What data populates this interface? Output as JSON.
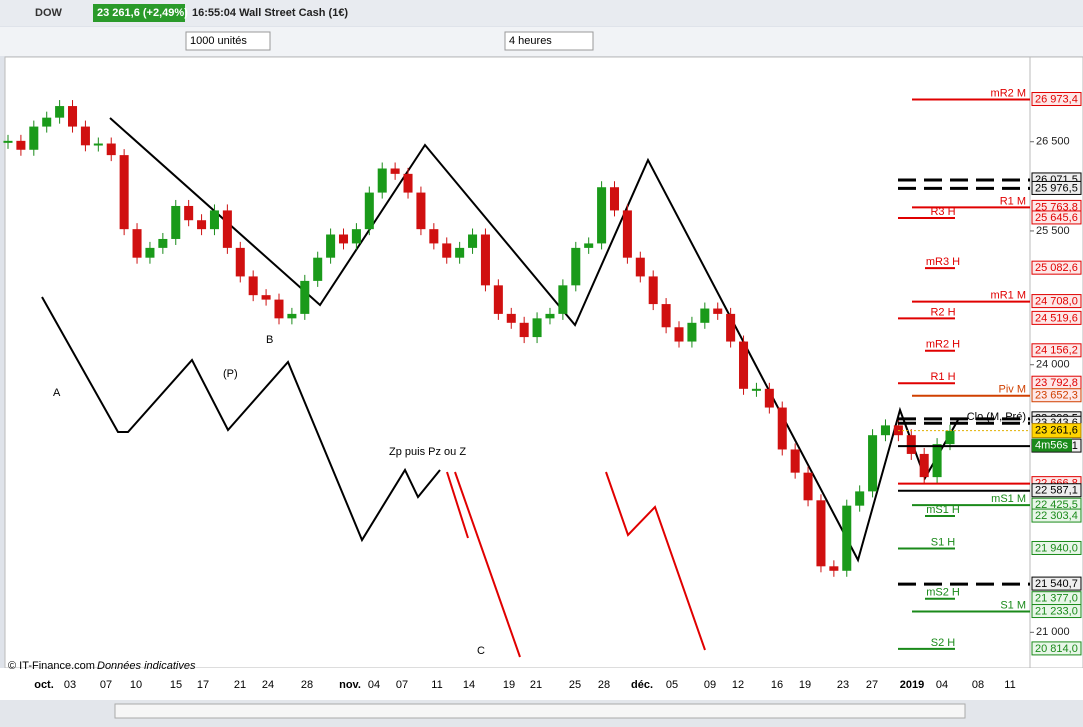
{
  "header": {
    "symbol": "DOW",
    "price": "23 261,6 (+2,49%)",
    "title": "16:55:04 Wall Street Cash (1€)"
  },
  "toolbar": {
    "quantity": "1000 unités",
    "period": "4 heures"
  },
  "chart_data": {
    "type": "candlestick",
    "ylim": [
      20600,
      27450
    ],
    "yticks": [
      {
        "value": 26500,
        "label": "26 500"
      },
      {
        "value": 25500,
        "label": "25 500"
      },
      {
        "value": 24000,
        "label": "24 000"
      },
      {
        "value": 21000,
        "label": "21 000"
      }
    ],
    "x_labels": [
      "oct.",
      "03",
      "07",
      "10",
      "15",
      "17",
      "21",
      "24",
      "28",
      "nov.",
      "04",
      "07",
      "11",
      "14",
      "19",
      "21",
      "25",
      "28",
      "déc.",
      "05",
      "09",
      "12",
      "16",
      "19",
      "23",
      "27",
      "2019",
      "04",
      "08",
      "11"
    ],
    "closes": [
      26510,
      26410,
      26670,
      26770,
      26900,
      26670,
      26460,
      26480,
      26350,
      25520,
      25200,
      25310,
      25410,
      25780,
      25620,
      25520,
      25730,
      25310,
      24990,
      24780,
      24730,
      24520,
      24570,
      24940,
      25200,
      25460,
      25360,
      25520,
      25930,
      26200,
      26140,
      25930,
      25520,
      25360,
      25200,
      25310,
      25460,
      24890,
      24570,
      24470,
      24310,
      24520,
      24570,
      24890,
      25310,
      25360,
      25990,
      25730,
      25200,
      24990,
      24680,
      24420,
      24260,
      24470,
      24630,
      24570,
      24260,
      23730,
      23730,
      23520,
      23050,
      22790,
      22480,
      21740,
      21690,
      22420,
      22580,
      23210,
      23320,
      23210,
      23000,
      22740,
      23110,
      23260
    ],
    "current": {
      "value": 23261.6,
      "value_label": "23 261,6"
    },
    "timer": "4m56s",
    "levels": [
      {
        "name": "mR2 M",
        "value": 26973.4,
        "value_label": "26 973,4",
        "color": "#e00000"
      },
      {
        "value": 26071.5,
        "value_label": "26 071,5",
        "color": "#000000",
        "dash": true
      },
      {
        "value": 25976.5,
        "value_label": "25 976,5",
        "color": "#000000",
        "dash": true
      },
      {
        "name": "R1 M",
        "value": 25763.8,
        "value_label": "25 763,8",
        "color": "#e00000"
      },
      {
        "name": "R3 H",
        "value": 25645.6,
        "value_label": "25 645,6",
        "color": "#e00000"
      },
      {
        "name": "mR3 H",
        "value": 25082.6,
        "value_label": "25 082,6",
        "color": "#e00000"
      },
      {
        "name": "mR1 M",
        "value": 24708.0,
        "value_label": "24 708,0",
        "color": "#e00000"
      },
      {
        "name": "R2 H",
        "value": 24519.6,
        "value_label": "24 519,6",
        "color": "#e00000"
      },
      {
        "name": "mR2 H",
        "value": 24156.2,
        "value_label": "24 156,2",
        "color": "#e00000"
      },
      {
        "name": "R1 H",
        "value": 23792.8,
        "value_label": "23 792,8",
        "color": "#e00000"
      },
      {
        "name": "Piv M",
        "value": 23652.3,
        "value_label": "23 652,3",
        "color": "#d04000"
      },
      {
        "value": 23393.5,
        "value_label": "23 393,5",
        "color": "#000000",
        "dash": true
      },
      {
        "name": "Clo (M, Pré)",
        "value": 23343.6,
        "value_label": "23 343,6",
        "color": "#000000",
        "dash": true
      },
      {
        "value": 23088.1,
        "value_label": "23 088,1",
        "color": "#000000"
      },
      {
        "value": 22666.8,
        "value_label": "22 666,8",
        "color": "#e00000"
      },
      {
        "value": 22587.1,
        "value_label": "22 587,1",
        "color": "#000000"
      },
      {
        "name": "mS1 M",
        "value": 22425.5,
        "value_label": "22 425,5",
        "color": "#1a8a1a"
      },
      {
        "name": "mS1 H",
        "value": 22303.4,
        "value_label": "22 303,4",
        "color": "#1a8a1a"
      },
      {
        "name": "S1 H",
        "value": 21940.0,
        "value_label": "21 940,0",
        "color": "#1a8a1a"
      },
      {
        "value": 21540.7,
        "value_label": "21 540,7",
        "color": "#000000",
        "dash": true
      },
      {
        "name": "mS2 H",
        "value": 21377.0,
        "value_label": "21 377,0",
        "color": "#1a8a1a"
      },
      {
        "name": "S1 M",
        "value": 21233.0,
        "value_label": "21 233,0",
        "color": "#1a8a1a"
      },
      {
        "name": "S2 H",
        "value": 20814.0,
        "value_label": "20 814,0",
        "color": "#1a8a1a"
      }
    ],
    "annotations": {
      "a": "A",
      "b": "B",
      "p": "(P)",
      "c": "C",
      "zp": "Zp puis Pz ou Z"
    },
    "credit": "© IT-Finance.com",
    "credit_note": "Données indicatives"
  }
}
